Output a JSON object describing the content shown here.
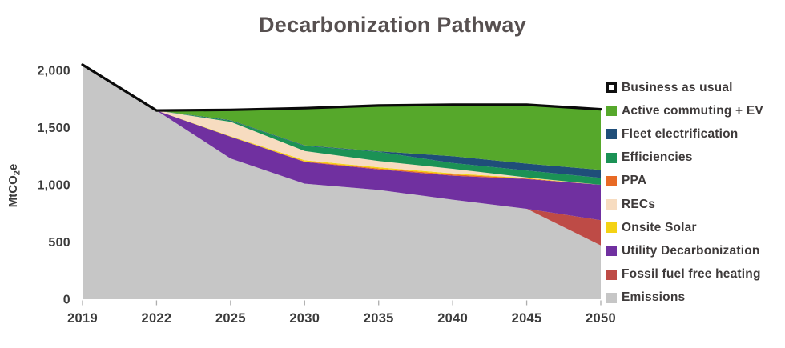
{
  "page": {
    "background": "#ffffff"
  },
  "chart_data": {
    "type": "area",
    "stacked": true,
    "title": "Decarbonization Pathway",
    "ylabel": "MtCO₂e",
    "x_categories": [
      "2019",
      "2022",
      "2025",
      "2030",
      "2035",
      "2040",
      "2045",
      "2050"
    ],
    "ylim": [
      0,
      2000
    ],
    "yticks": [
      {
        "value": 0,
        "label": "0"
      },
      {
        "value": 500,
        "label": "500"
      },
      {
        "value": 1000,
        "label": "1,000"
      },
      {
        "value": 1500,
        "label": "1,500"
      },
      {
        "value": 2000,
        "label": "2,000"
      }
    ],
    "grid": false,
    "legend_position": "right",
    "series": [
      {
        "name": "Emissions",
        "color": "#C6C6C6",
        "values": [
          2050,
          1650,
          1230,
          1010,
          955,
          870,
          790,
          470
        ]
      },
      {
        "name": "Fossil fuel free heating",
        "color": "#BE4B46",
        "values": [
          0,
          0,
          0,
          0,
          0,
          0,
          0,
          220
        ]
      },
      {
        "name": "Utility Decarbonization",
        "color": "#7030A0",
        "values": [
          0,
          0,
          190,
          190,
          180,
          210,
          260,
          310
        ]
      },
      {
        "name": "PPA",
        "color": "#E86A25",
        "values": [
          0,
          0,
          0,
          5,
          8,
          10,
          5,
          0
        ]
      },
      {
        "name": "Onsite Solar",
        "color": "#F4D214",
        "values": [
          0,
          0,
          5,
          10,
          10,
          10,
          5,
          0
        ]
      },
      {
        "name": "RECs",
        "color": "#F7DCC0",
        "values": [
          0,
          0,
          125,
          80,
          55,
          40,
          5,
          0
        ]
      },
      {
        "name": "Efficiencies",
        "color": "#1B9255",
        "values": [
          0,
          0,
          10,
          45,
          80,
          50,
          60,
          60
        ]
      },
      {
        "name": "Fleet electrification",
        "color": "#1F4E79",
        "values": [
          0,
          0,
          5,
          5,
          5,
          60,
          60,
          70
        ]
      },
      {
        "name": "Active commuting + EV",
        "color": "#56A82B",
        "values": [
          0,
          0,
          90,
          325,
          400,
          450,
          515,
          530
        ]
      }
    ],
    "bau_line": {
      "name": "Business as usual",
      "color": "#0A0A0A",
      "values": [
        2050,
        1650,
        1655,
        1670,
        1693,
        1700,
        1700,
        1660
      ]
    },
    "legend": [
      {
        "label": "Business as usual",
        "swatch": "outline",
        "color": "#000000"
      },
      {
        "label": "Active commuting + EV",
        "color": "#56A82B"
      },
      {
        "label": "Fleet electrification",
        "color": "#1F4E79"
      },
      {
        "label": "Efficiencies",
        "color": "#1B9255"
      },
      {
        "label": "PPA",
        "color": "#E86A25"
      },
      {
        "label": "RECs",
        "color": "#F7DCC0"
      },
      {
        "label": "Onsite Solar",
        "color": "#F4D214"
      },
      {
        "label": "Utility Decarbonization",
        "color": "#7030A0"
      },
      {
        "label": "Fossil fuel free heating",
        "color": "#BE4B46"
      },
      {
        "label": "Emissions",
        "color": "#C6C6C6"
      }
    ]
  }
}
